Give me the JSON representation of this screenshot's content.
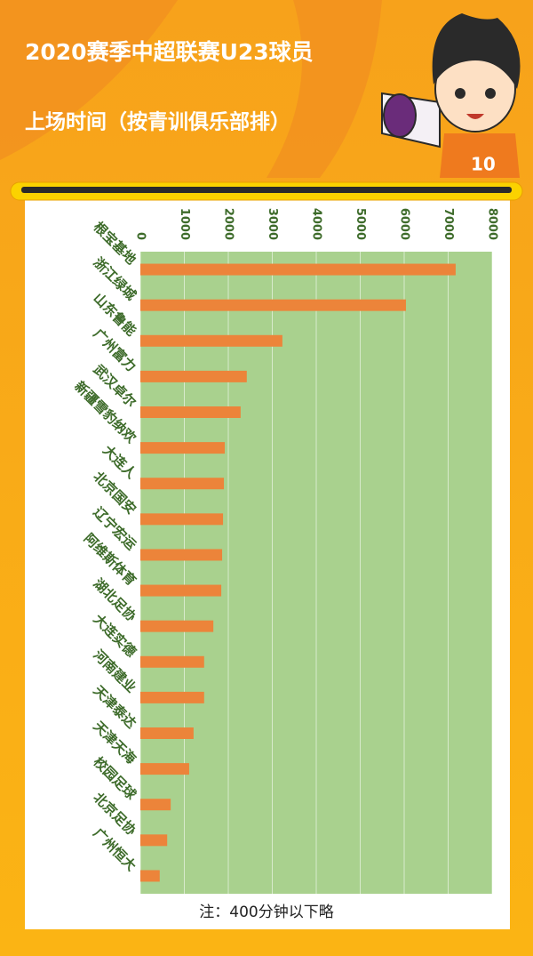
{
  "chart_data": {
    "type": "bar",
    "orientation": "horizontal",
    "title": "2020赛季中超联赛U23球员",
    "subtitle": "上场时间（按青训俱乐部排）",
    "note": "注：400分钟以下略",
    "categories": [
      "根宝基地",
      "浙江绿城",
      "山东鲁能",
      "广州富力",
      "武汉卓尔",
      "新疆雪豹纳欢",
      "大连人",
      "北京国安",
      "辽宁宏运",
      "阿维斯体育",
      "湖北足协",
      "大连实德",
      "河南建业",
      "天津泰达",
      "天津天海",
      "校园足球",
      "北京足协",
      "广州恒大"
    ],
    "values": [
      7170,
      6040,
      3230,
      2420,
      2280,
      1920,
      1900,
      1880,
      1860,
      1840,
      1660,
      1450,
      1450,
      1210,
      1110,
      690,
      610,
      440
    ],
    "color": "#ec843a",
    "xlim": [
      0,
      8000
    ],
    "xticks": [
      0,
      1000,
      2000,
      3000,
      4000,
      5000,
      6000,
      7000,
      8000
    ],
    "grid": true
  }
}
